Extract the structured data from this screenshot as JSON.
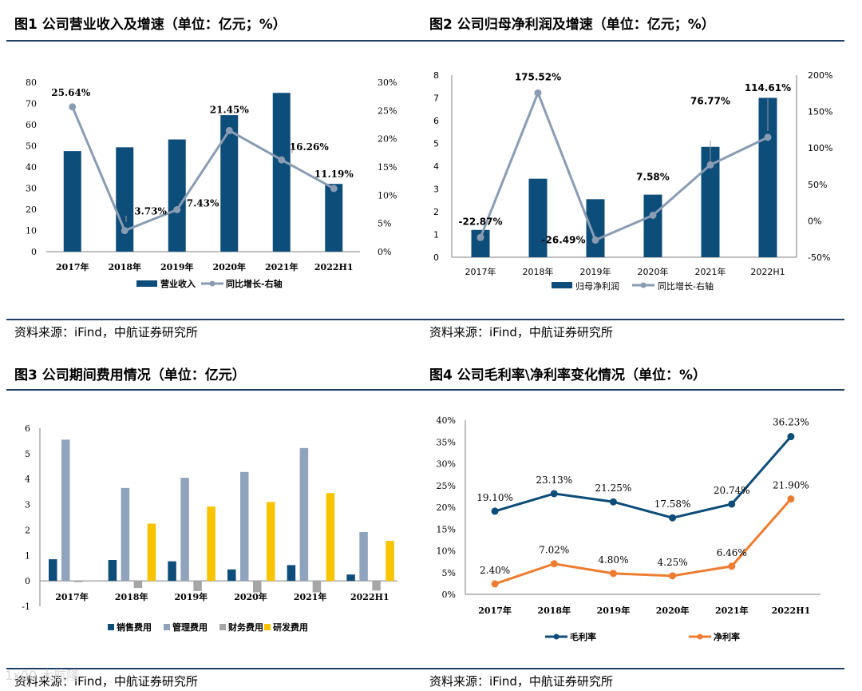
{
  "panels": {
    "p1": {
      "title": "图1  公司营业收入及增速（单位：亿元；%）",
      "source": "资料来源：iFind，中航证券研究所"
    },
    "p2": {
      "title": "图2  公司归母净利润及增速（单位：亿元；%）",
      "source": "资料来源：iFind，中航证券研究所"
    },
    "p3": {
      "title": "图3  公司期间费用情况（单位：亿元）",
      "source": "资料来源：iFind，中航证券研究所"
    },
    "p4": {
      "title": "图4  公司毛利率\\净利率变化情况（单位：%）",
      "source": "资料来源：iFind，中航证券研究所"
    }
  },
  "watermark": "1x00 大航隆",
  "colors": {
    "navy": "#0d4d7a",
    "grey_line": "#8a9cb3",
    "steel": "#8fa3bd",
    "grey": "#a6a6a6",
    "yellow": "#f8c300",
    "orange": "#ed7d31",
    "rule": "#1f3f66"
  },
  "chart_data": [
    {
      "type": "bar",
      "categories": [
        "2017年",
        "2018年",
        "2019年",
        "2020年",
        "2021年",
        "2022H1"
      ],
      "series": [
        {
          "name": "营业收入",
          "values": [
            47.5,
            49.3,
            53.0,
            64.5,
            75.0,
            32.0
          ],
          "axis": "left"
        },
        {
          "name": "同比增长-右轴",
          "type": "line",
          "values": [
            25.64,
            3.73,
            7.43,
            21.45,
            16.26,
            11.19
          ],
          "labels": [
            "25.64%",
            "3.73%",
            "7.43%",
            "21.45%",
            "16.26%",
            "11.19%"
          ],
          "axis": "right"
        }
      ],
      "yticks": [
        "0",
        "10",
        "20",
        "30",
        "40",
        "50",
        "60",
        "70",
        "80"
      ],
      "y2ticks": [
        "0%",
        "5%",
        "10%",
        "15%",
        "20%",
        "25%",
        "30%"
      ],
      "ylim": [
        0,
        80
      ],
      "y2lim": [
        0,
        30
      ]
    },
    {
      "type": "bar",
      "categories": [
        "2017年",
        "2018年",
        "2019年",
        "2020年",
        "2021年",
        "2022H1"
      ],
      "series": [
        {
          "name": "归母净利润",
          "values": [
            1.2,
            3.45,
            2.55,
            2.75,
            4.85,
            7.0
          ],
          "axis": "left"
        },
        {
          "name": "同比增长-右轴",
          "type": "line",
          "values": [
            -22.87,
            175.52,
            -26.49,
            7.58,
            76.77,
            114.61
          ],
          "labels": [
            "-22.87%",
            "175.52%",
            "-26.49%",
            "7.58%",
            "76.77%",
            "114.61%"
          ],
          "axis": "right"
        }
      ],
      "yticks": [
        "0",
        "1",
        "2",
        "3",
        "4",
        "5",
        "6",
        "7",
        "8"
      ],
      "y2ticks": [
        "-50%",
        "0%",
        "50%",
        "100%",
        "150%",
        "200%"
      ],
      "ylim": [
        0,
        8
      ],
      "y2lim": [
        -50,
        200
      ]
    },
    {
      "type": "bar",
      "categories": [
        "2017年",
        "2018年",
        "2019年",
        "2020年",
        "2021年",
        "2022H1"
      ],
      "series": [
        {
          "name": "销售费用",
          "values": [
            0.85,
            0.82,
            0.77,
            0.45,
            0.62,
            0.25
          ]
        },
        {
          "name": "管理费用",
          "values": [
            5.55,
            3.65,
            4.05,
            4.28,
            5.22,
            1.92
          ]
        },
        {
          "name": "财务费用",
          "values": [
            -0.05,
            -0.28,
            -0.4,
            -0.45,
            -0.45,
            -0.38
          ]
        },
        {
          "name": "研发费用",
          "values": [
            0.0,
            2.25,
            2.92,
            3.1,
            3.45,
            1.57
          ]
        }
      ],
      "yticks": [
        "-1",
        "0",
        "1",
        "2",
        "3",
        "4",
        "5",
        "6"
      ],
      "ylim": [
        -1,
        6
      ]
    },
    {
      "type": "line",
      "categories": [
        "2017年",
        "2018年",
        "2019年",
        "2020年",
        "2021年",
        "2022H1"
      ],
      "series": [
        {
          "name": "毛利率",
          "values": [
            19.1,
            23.13,
            21.25,
            17.58,
            20.74,
            36.23
          ],
          "labels": [
            "19.10%",
            "23.13%",
            "21.25%",
            "17.58%",
            "20.74%",
            "36.23%"
          ]
        },
        {
          "name": "净利率",
          "values": [
            2.4,
            7.02,
            4.8,
            4.25,
            6.46,
            21.9
          ],
          "labels": [
            "2.40%",
            "7.02%",
            "4.80%",
            "4.25%",
            "6.46%",
            "21.90%"
          ]
        }
      ],
      "yticks": [
        "0%",
        "5%",
        "10%",
        "15%",
        "20%",
        "25%",
        "30%",
        "35%",
        "40%"
      ],
      "ylim": [
        0,
        40
      ]
    }
  ]
}
